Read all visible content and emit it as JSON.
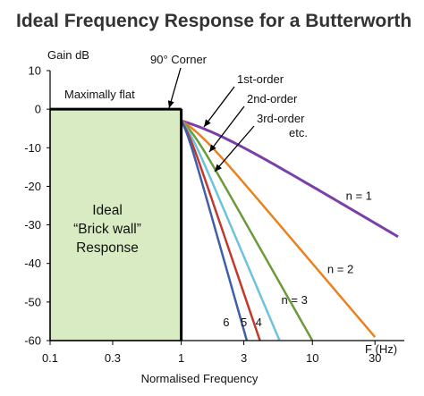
{
  "chart_data": {
    "type": "line",
    "title": "Ideal Frequency Response for a Butterworth",
    "xlabel": "Normalised Frequency",
    "x_unit_label": "F (Hz)",
    "ylabel": "Gain dB",
    "x_scale": "log",
    "xlim": [
      0.1,
      45
    ],
    "ylim": [
      -60,
      10
    ],
    "x_ticks": [
      {
        "value": 0.1,
        "label": "0.1"
      },
      {
        "value": 0.3,
        "label": "0.3"
      },
      {
        "value": 1,
        "label": "1"
      },
      {
        "value": 3,
        "label": "3"
      },
      {
        "value": 10,
        "label": "10"
      },
      {
        "value": 30,
        "label": "30"
      }
    ],
    "y_ticks": [
      {
        "value": 10,
        "label": "10"
      },
      {
        "value": 0,
        "label": "0"
      },
      {
        "value": -10,
        "label": "-10"
      },
      {
        "value": -20,
        "label": "-20"
      },
      {
        "value": -30,
        "label": "-30"
      },
      {
        "value": -40,
        "label": "-40"
      },
      {
        "value": -50,
        "label": "-50"
      },
      {
        "value": -60,
        "label": "-60"
      }
    ],
    "passband": {
      "x_start": 0.1,
      "x_end": 1,
      "color": "#d9ebc3",
      "border": "#000000"
    },
    "brick_wall_label": [
      "Ideal",
      "“Brick wall”",
      "Response"
    ],
    "annotations": {
      "maximally_flat": "Maximally flat",
      "corner": "90° Corner",
      "orders": [
        "1st-order",
        "2nd-order",
        "3rd-order",
        "etc."
      ]
    },
    "series": [
      {
        "label": "n = 1",
        "order": 1,
        "color": "#7b3fa8",
        "width": 3,
        "end_x": 45
      },
      {
        "label": "n = 2",
        "order": 2,
        "color": "#e8821e",
        "width": 2.5,
        "end_x": 30
      },
      {
        "label": "n = 3",
        "order": 3,
        "color": "#6b9a3a",
        "width": 2.5,
        "end_x": 10
      },
      {
        "label": "4",
        "order": 4,
        "color": "#6cc3dc",
        "width": 2.5,
        "end_x": 5.6
      },
      {
        "label": "5",
        "order": 5,
        "color": "#c0392b",
        "width": 2.5,
        "end_x": 4.0
      },
      {
        "label": "6",
        "order": 6,
        "color": "#3f5fa8",
        "width": 2.5,
        "end_x": 3.16
      }
    ]
  }
}
